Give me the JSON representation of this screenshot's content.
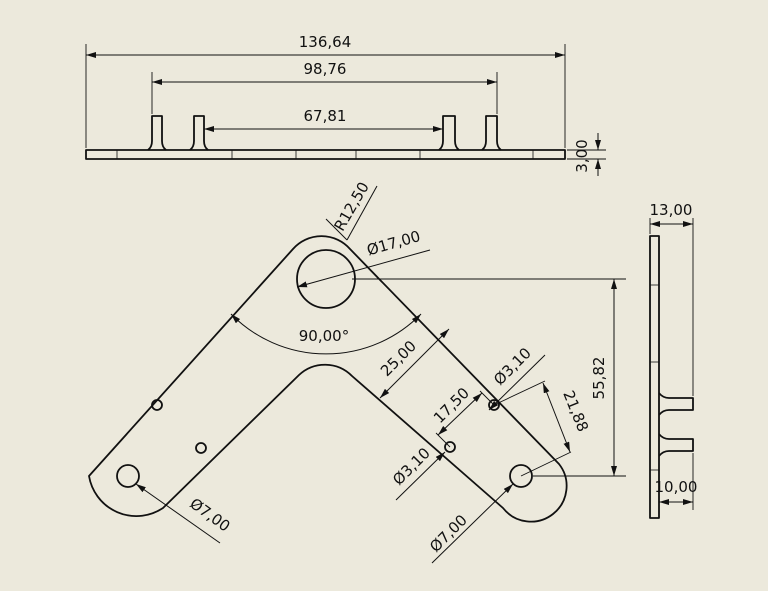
{
  "drawing": {
    "top_view": {
      "overall_length": "136,64",
      "outer_tab_span": "98,76",
      "inner_tab_gap": "67,81",
      "plate_thickness": "3,00"
    },
    "front_view": {
      "corner_radius": "R12,50",
      "large_hole_diameter": "Ø17,00",
      "included_angle": "90,00°",
      "arm_width": "25,00",
      "small_hole_spacing": "17,50",
      "small_hole_diameter_upper": "Ø3,10",
      "small_hole_diameter_lower": "Ø3,10",
      "hole_offset": "21,88",
      "vertical_offset": "55,82",
      "end_hole_diameter_left": "Ø7,00",
      "end_hole_diameter_right": "Ø7,00"
    },
    "side_view": {
      "overall_depth": "13,00",
      "tab_height": "10,00"
    }
  }
}
